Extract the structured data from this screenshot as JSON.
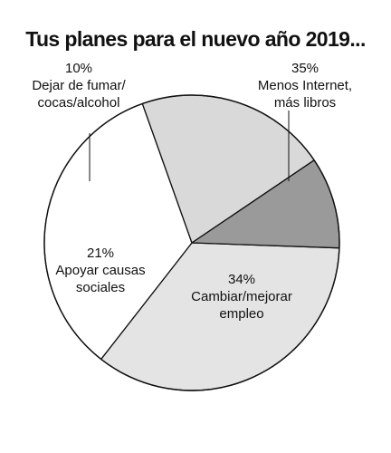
{
  "chart_data": {
    "type": "pie",
    "title": "Tus planes para el nuevo año 2019...",
    "slices": [
      {
        "label_lines": [
          "Menos Internet,",
          "más libros"
        ],
        "percent_label": "35%",
        "value": 35,
        "color": "#e4e4e4"
      },
      {
        "label_lines": [
          "Cambiar/mejorar",
          "empleo"
        ],
        "percent_label": "34%",
        "value": 34,
        "color": "#ffffff"
      },
      {
        "label_lines": [
          "Apoyar causas",
          "sociales"
        ],
        "percent_label": "21%",
        "value": 21,
        "color": "#d9d9d9"
      },
      {
        "label_lines": [
          "Dejar de fumar/",
          "cocas/alcohol"
        ],
        "percent_label": "10%",
        "value": 10,
        "color": "#9a9a9a"
      }
    ]
  }
}
